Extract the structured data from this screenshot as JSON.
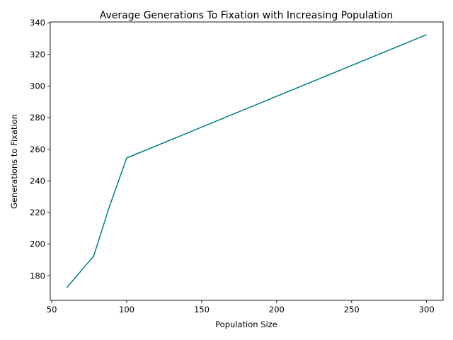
{
  "chart_data": {
    "type": "line",
    "title": "Average Generations To Fixation with Increasing Population",
    "xlabel": "Population Size",
    "ylabel": "Generations to Fixation",
    "xlim": [
      49,
      311
    ],
    "ylim": [
      164.5,
      340.5
    ],
    "xticks": [
      50,
      100,
      150,
      200,
      250,
      300
    ],
    "yticks": [
      180,
      200,
      220,
      240,
      260,
      280,
      300,
      320,
      340
    ],
    "grid": false,
    "series": [
      {
        "color": "#008080",
        "x": [
          60,
          78,
          88,
          100,
          300
        ],
        "y": [
          172.5,
          192.5,
          222.5,
          254.5,
          332.5
        ]
      }
    ]
  }
}
